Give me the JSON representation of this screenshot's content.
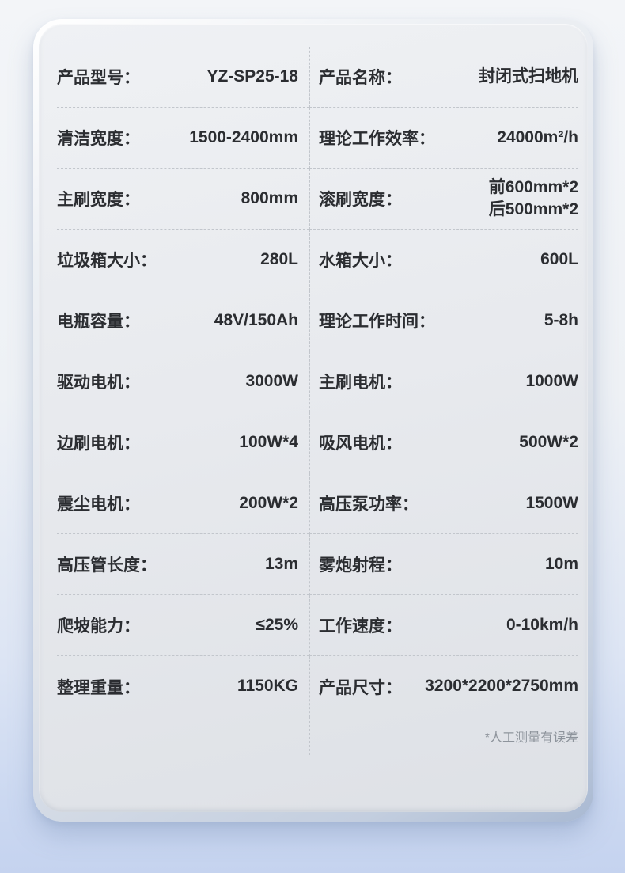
{
  "colors": {
    "text": "#2b2d31",
    "footnote_text": "#8e949c",
    "divider": "#c2c6cc",
    "card_surface": "#e8eaee",
    "background_top": "#f3f5f8",
    "background_bottom": "#c5d3ef"
  },
  "card": {
    "rows": [
      {
        "left": {
          "label": "产品型号：",
          "value": "YZ-SP25-18"
        },
        "right": {
          "label": "产品名称：",
          "value": "封闭式扫地机"
        }
      },
      {
        "left": {
          "label": "清洁宽度：",
          "value": "1500-2400mm"
        },
        "right": {
          "label": "理论工作效率：",
          "value": "24000m²/h"
        }
      },
      {
        "left": {
          "label": "主刷宽度：",
          "value": "800mm"
        },
        "right": {
          "label": "滚刷宽度：",
          "value": "前600mm*2\n后500mm*2"
        }
      },
      {
        "left": {
          "label": "垃圾箱大小：",
          "value": "280L"
        },
        "right": {
          "label": "水箱大小：",
          "value": "600L"
        }
      },
      {
        "left": {
          "label": "电瓶容量：",
          "value": "48V/150Ah"
        },
        "right": {
          "label": "理论工作时间：",
          "value": "5-8h"
        }
      },
      {
        "left": {
          "label": "驱动电机：",
          "value": "3000W"
        },
        "right": {
          "label": "主刷电机：",
          "value": "1000W"
        }
      },
      {
        "left": {
          "label": "边刷电机：",
          "value": "100W*4"
        },
        "right": {
          "label": "吸风电机：",
          "value": "500W*2"
        }
      },
      {
        "left": {
          "label": "震尘电机：",
          "value": "200W*2"
        },
        "right": {
          "label": "高压泵功率：",
          "value": "1500W"
        }
      },
      {
        "left": {
          "label": "高压管长度：",
          "value": "13m"
        },
        "right": {
          "label": "雾炮射程：",
          "value": "10m"
        }
      },
      {
        "left": {
          "label": "爬坡能力：",
          "value": "≤25%"
        },
        "right": {
          "label": "工作速度：",
          "value": "0-10km/h"
        }
      },
      {
        "left": {
          "label": "整理重量：",
          "value": "1150KG"
        },
        "right": {
          "label": "产品尺寸：",
          "value": "3200*2200*2750mm"
        }
      }
    ],
    "footnote": "*人工测量有误差"
  }
}
